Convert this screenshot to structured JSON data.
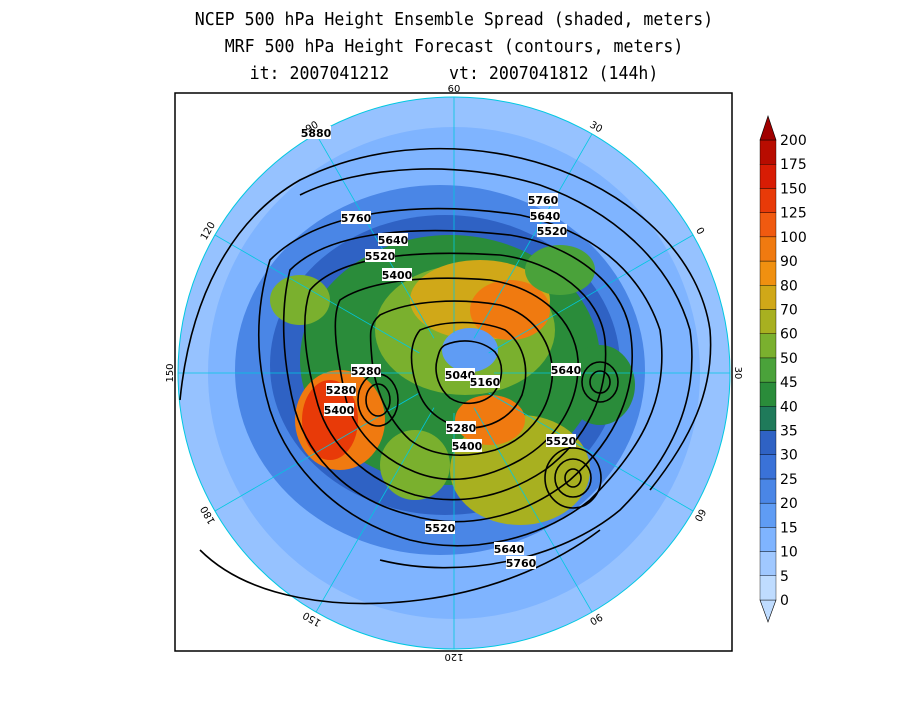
{
  "title": {
    "line1": "NCEP 500 hPa Height Ensemble Spread (shaded, meters)",
    "line2": "MRF 500 hPa Height Forecast (contours, meters)",
    "line3": "it: 2007041212      vt: 2007041812 (144h)"
  },
  "longitude_labels": [
    {
      "text": "60",
      "angle": 0
    },
    {
      "text": "30",
      "angle": 30
    },
    {
      "text": "0",
      "angle": 60
    },
    {
      "text": "30",
      "angle": 90
    },
    {
      "text": "60",
      "angle": 120
    },
    {
      "text": "90",
      "angle": 150
    },
    {
      "text": "120",
      "angle": 180
    },
    {
      "text": "150",
      "angle": 210
    },
    {
      "text": "180",
      "angle": 240
    },
    {
      "text": "150",
      "angle": 270
    },
    {
      "text": "120",
      "angle": 300
    },
    {
      "text": "90",
      "angle": 330
    }
  ],
  "contour_labels": [
    {
      "text": "5880"
    },
    {
      "text": "5760"
    },
    {
      "text": "5640"
    },
    {
      "text": "5520"
    },
    {
      "text": "5400"
    },
    {
      "text": "5760"
    },
    {
      "text": "5640"
    },
    {
      "text": "5520"
    },
    {
      "text": "5280"
    },
    {
      "text": "5280"
    },
    {
      "text": "5400"
    },
    {
      "text": "5040"
    },
    {
      "text": "5160"
    },
    {
      "text": "5640"
    },
    {
      "text": "5280"
    },
    {
      "text": "5400"
    },
    {
      "text": "5520"
    },
    {
      "text": "5520"
    },
    {
      "text": "5640"
    },
    {
      "text": "5760"
    }
  ],
  "colorbar": {
    "levels": [
      "0",
      "5",
      "10",
      "15",
      "20",
      "25",
      "30",
      "35",
      "40",
      "45",
      "50",
      "60",
      "70",
      "80",
      "90",
      "100",
      "125",
      "150",
      "175",
      "200"
    ],
    "colors": [
      "#bfdcff",
      "#a0c8ff",
      "#7fb4ff",
      "#5f9cf4",
      "#4a86e6",
      "#3a72d8",
      "#2f62c4",
      "#1f7a5a",
      "#2a8c3a",
      "#4aa23a",
      "#7ab02e",
      "#a8b020",
      "#d0a818",
      "#f09010",
      "#f07a10",
      "#f05a10",
      "#e83a08",
      "#d81c04",
      "#b80c00",
      "#a00000"
    ]
  }
}
